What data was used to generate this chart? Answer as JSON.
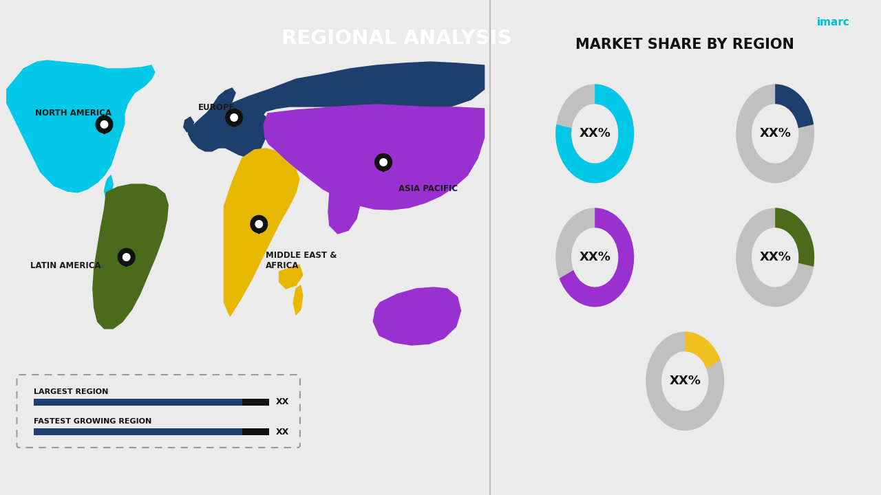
{
  "title": "REGIONAL ANALYSIS",
  "bg_color": "#ebebeb",
  "right_panel_color": "#f2f2f2",
  "title_box_color": "#2d5f8a",
  "title_text_color": "#ffffff",
  "divider_color": "#bbbbbb",
  "right_panel_title": "MARKET SHARE BY REGION",
  "donuts": [
    {
      "color": "#00c8e6",
      "value": 0.78,
      "label": "XX%"
    },
    {
      "color": "#1e3f6e",
      "value": 0.22,
      "label": "XX%"
    },
    {
      "color": "#9b30d0",
      "value": 0.68,
      "label": "XX%"
    },
    {
      "color": "#4a6b1c",
      "value": 0.28,
      "label": "XX%"
    },
    {
      "color": "#f0c020",
      "value": 0.18,
      "label": "XX%"
    }
  ],
  "donut_bg_color": "#c0c0c0",
  "na_color": "#00c8e6",
  "eu_color": "#1e3f6e",
  "ap_color": "#9b30d0",
  "mea_color": "#e8b800",
  "la_color": "#4a6b1c",
  "pin_color": "#111111",
  "legend_items": [
    {
      "label": "LARGEST REGION",
      "value": "XX"
    },
    {
      "label": "FASTEST GROWING REGION",
      "value": "XX"
    }
  ]
}
